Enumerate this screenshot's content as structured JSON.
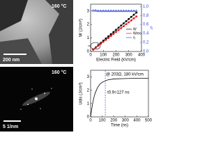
{
  "panels": {
    "tem": {
      "temperature": "160 °C",
      "scale": "200 nm"
    },
    "diffraction": {
      "temperature": "160 °C",
      "scale": "5 1/nm"
    }
  },
  "chart_data": [
    {
      "type": "line",
      "xlabel": "Electric Field (kV/cm)",
      "ylabel": "W (J/cm³)",
      "y2label": "η",
      "x": [
        20,
        40,
        60,
        80,
        100,
        120,
        140,
        160,
        180,
        200,
        220,
        240,
        260,
        280,
        300,
        320,
        340,
        360
      ],
      "series": [
        {
          "name": "W",
          "color": "#000000",
          "marker": "square",
          "values": [
            0.15,
            0.3,
            0.47,
            0.63,
            0.8,
            0.96,
            1.12,
            1.28,
            1.44,
            1.6,
            1.76,
            1.92,
            2.08,
            2.24,
            2.4,
            2.56,
            2.72,
            2.88
          ]
        },
        {
          "name": "Wrec",
          "color": "#e8141b",
          "marker": "circle",
          "values": [
            0.13,
            0.27,
            0.42,
            0.57,
            0.72,
            0.86,
            1.0,
            1.15,
            1.3,
            1.44,
            1.58,
            1.73,
            1.87,
            2.02,
            2.16,
            2.3,
            2.45,
            2.59
          ]
        },
        {
          "name": "η",
          "color": "#3a4fd8",
          "marker": "triangle",
          "axis": "y2",
          "values": [
            0.91,
            0.91,
            0.9,
            0.9,
            0.9,
            0.9,
            0.9,
            0.9,
            0.9,
            0.9,
            0.9,
            0.9,
            0.9,
            0.9,
            0.9,
            0.9,
            0.9,
            0.9
          ]
        }
      ],
      "xlim": [
        0,
        400
      ],
      "xticks": [
        0,
        100,
        200,
        300,
        400
      ],
      "ylim": [
        0,
        3.5
      ],
      "yticks": [
        0,
        1,
        2,
        3
      ],
      "y2lim": [
        0,
        1.05
      ],
      "y2ticks": [
        {
          "value": 0,
          "label": "0.0"
        },
        0.2,
        0.4,
        0.6,
        0.8,
        {
          "value": 1,
          "label": "1.0"
        }
      ],
      "legend": "center right"
    },
    {
      "type": "line",
      "xlabel": "Time (ns)",
      "ylabel": "Udis (J/cm³)",
      "annotation": "@ 203Ω, 180 kV/cm",
      "x": [
        0,
        10,
        20,
        30,
        40,
        60,
        80,
        100,
        127,
        150,
        200,
        300,
        400,
        500
      ],
      "series": [
        {
          "name": null,
          "color": "#000000",
          "values": [
            0,
            0.6,
            1.1,
            1.5,
            1.8,
            2.2,
            2.45,
            2.6,
            2.7,
            2.78,
            2.85,
            2.88,
            2.9,
            2.9
          ]
        }
      ],
      "markers": [
        {
          "x": 127,
          "label": "t0.9=127 ns",
          "color": "#3a4fd8"
        }
      ],
      "xlim": [
        0,
        500
      ],
      "xticks": [
        0,
        100,
        200,
        300,
        400,
        500
      ],
      "ylim": [
        0,
        3.5
      ],
      "yticks": [
        0,
        1,
        2,
        3
      ]
    }
  ]
}
